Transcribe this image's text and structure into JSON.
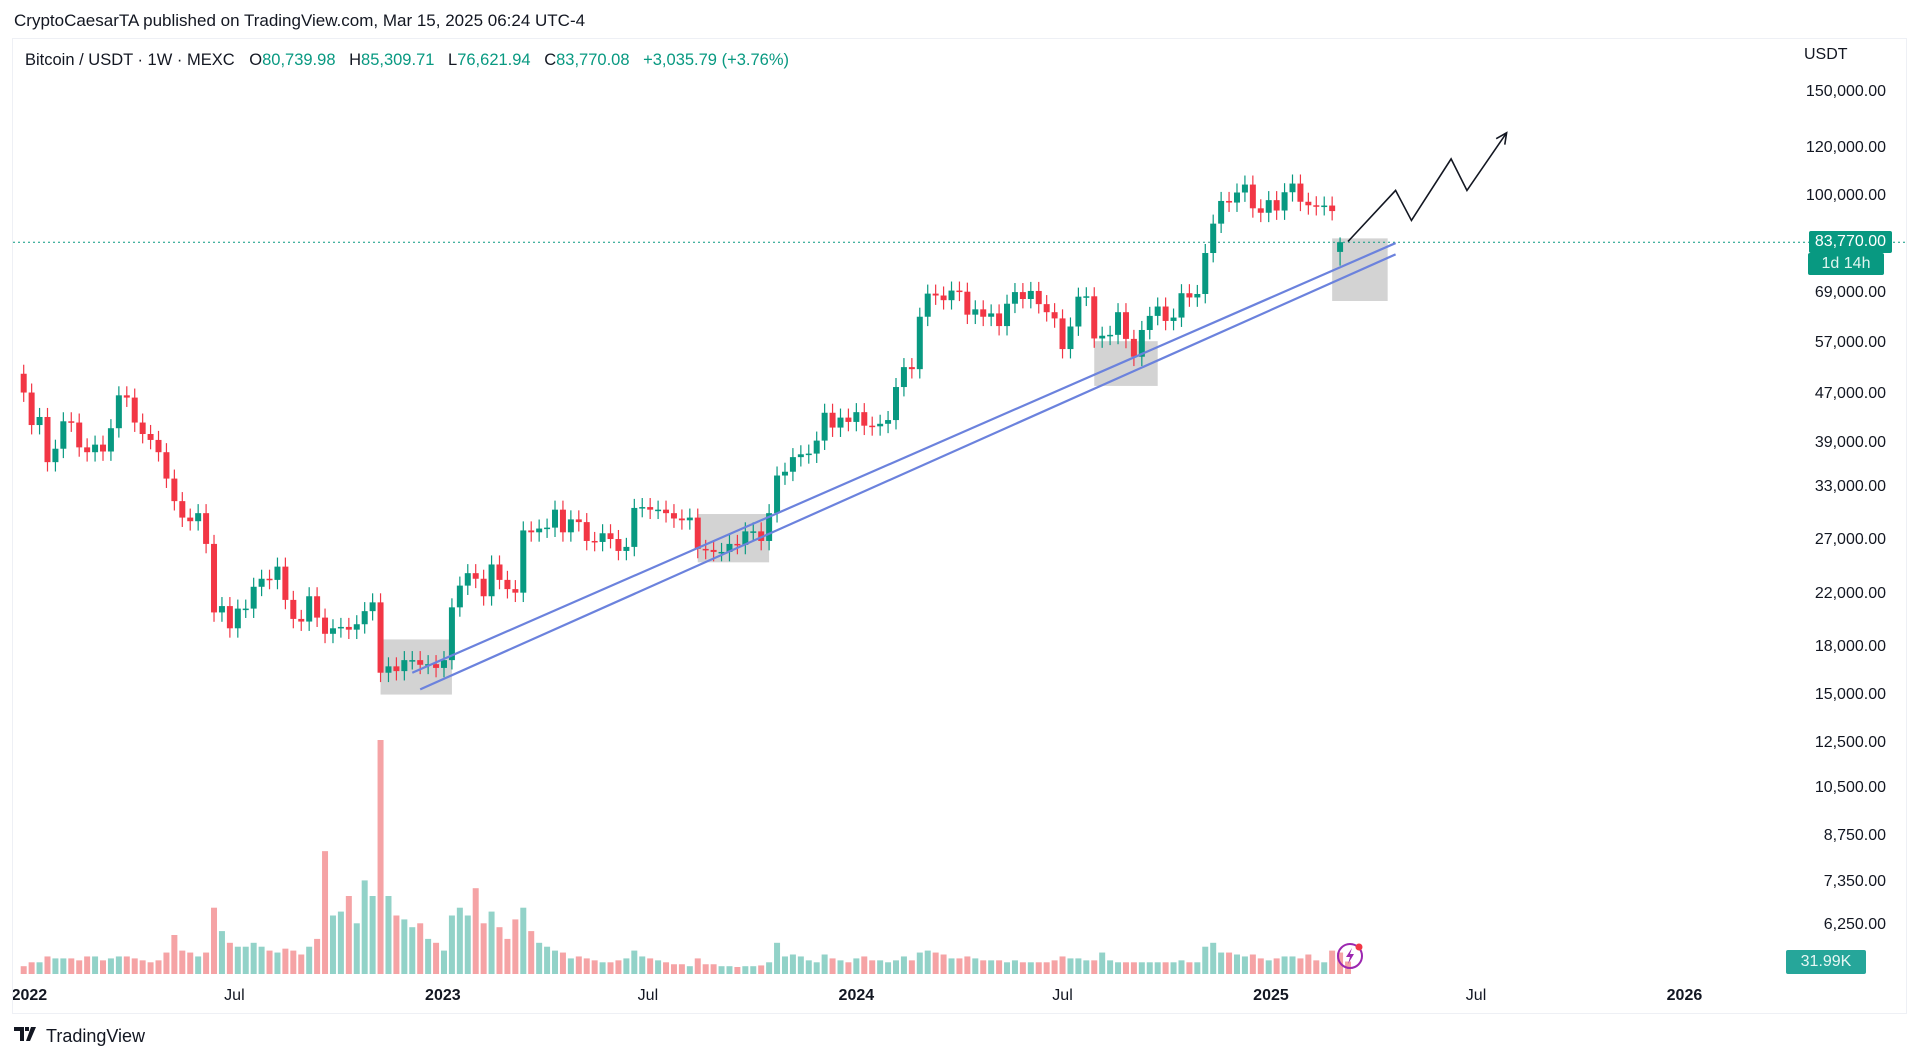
{
  "publication": "CryptoCaesarTA published on TradingView.com, Mar 15, 2025 06:24 UTC-4",
  "legend": {
    "symbol": "Bitcoin / USDT · 1W · MEXC",
    "o_label": "O",
    "o": "80,739.98",
    "h_label": "H",
    "h": "85,309.71",
    "l_label": "L",
    "l": "76,621.94",
    "c_label": "C",
    "c": "83,770.08",
    "change": "+3,035.79 (+3.76%)"
  },
  "price_axis": {
    "currency": "USDT",
    "ticks": [
      "150,000.00",
      "120,000.00",
      "100,000.00",
      "69,000.00",
      "57,000.00",
      "47,000.00",
      "39,000.00",
      "33,000.00",
      "27,000.00",
      "22,000.00",
      "18,000.00",
      "15,000.00",
      "12,500.00",
      "10,500.00",
      "8,750.00",
      "7,350.00",
      "6,250.00"
    ],
    "current_price": "83,770.00",
    "countdown": "1d 14h",
    "volume_label": "31.99K"
  },
  "time_axis": {
    "ticks": [
      {
        "label": "2022",
        "date": "2022-01-01",
        "year": true
      },
      {
        "label": "Jul",
        "date": "2022-07-01",
        "year": false
      },
      {
        "label": "2023",
        "date": "2023-01-01",
        "year": true
      },
      {
        "label": "Jul",
        "date": "2023-07-01",
        "year": false
      },
      {
        "label": "2024",
        "date": "2024-01-01",
        "year": true
      },
      {
        "label": "Jul",
        "date": "2024-07-01",
        "year": false
      },
      {
        "label": "2025",
        "date": "2025-01-01",
        "year": true
      },
      {
        "label": "Jul",
        "date": "2025-07-01",
        "year": false
      },
      {
        "label": "2026",
        "date": "2026-01-01",
        "year": true
      }
    ]
  },
  "footer": {
    "brand": "TradingView"
  },
  "colors": {
    "up": "#089981",
    "down": "#f23645",
    "up_volume": "#92d2c8",
    "down_volume": "#f5a3a5",
    "trendline": "#6b82dd",
    "zone": "#c4c4c4",
    "projection": "#131722",
    "current_line": "#089981",
    "alert": "#9c27b0"
  },
  "icons": {
    "alert": "lightning-bolt-icon",
    "logo": "tradingview-logo-icon"
  },
  "chart_data": {
    "type": "candlestick",
    "symbol": "BTCUSDT",
    "interval": "1W",
    "y_scale": "log",
    "ylim": [
      5600,
      160000
    ],
    "first_week": "2021-12-27",
    "first_open": 50800,
    "closes": [
      47300,
      41800,
      43100,
      36300,
      38200,
      42400,
      42200,
      38400,
      37700,
      38800,
      37800,
      41300,
      46800,
      46400,
      42200,
      40400,
      39500,
      37700,
      34100,
      31300,
      29400,
      29000,
      29900,
      26600,
      20500,
      21000,
      19300,
      20800,
      20800,
      22600,
      23300,
      23200,
      24400,
      21500,
      20000,
      19800,
      21800,
      20100,
      18900,
      19300,
      19400,
      19200,
      19600,
      20600,
      21300,
      16300,
      16700,
      16400,
      17100,
      17100,
      16800,
      16840,
      16600,
      17100,
      20900,
      22700,
      23800,
      23300,
      21800,
      24600,
      23200,
      22400,
      22100,
      28000,
      27800,
      28200,
      28300,
      30300,
      27800,
      29200,
      28900,
      26900,
      26800,
      27700,
      27100,
      25900,
      26300,
      30500,
      30600,
      30300,
      30300,
      29900,
      29300,
      29100,
      29400,
      26100,
      26000,
      25800,
      25800,
      26600,
      26500,
      27900,
      27900,
      26900,
      29900,
      34500,
      35000,
      37000,
      37400,
      37500,
      39400,
      43800,
      41400,
      43000,
      42300,
      43900,
      41700,
      41600,
      42000,
      42600,
      48300,
      52100,
      51700,
      63100,
      68900,
      68400,
      67200,
      69700,
      69400,
      63600,
      64900,
      63100,
      63900,
      60900,
      66300,
      69300,
      67500,
      69600,
      66200,
      64200,
      62700,
      55800,
      60800,
      68100,
      68200,
      58100,
      58700,
      58900,
      64200,
      58000,
      54200,
      60000,
      63300,
      65600,
      62100,
      62900,
      69000,
      67900,
      68800,
      80400,
      89900,
      98000,
      97400,
      101200,
      104300,
      95300,
      93700,
      98300,
      94500,
      101300,
      104700,
      97700,
      96400,
      96100,
      96300,
      94300,
      80740
    ],
    "last_candle": {
      "open": 80739.98,
      "high": 85309.71,
      "low": 76621.94,
      "close": 83770.08
    },
    "volume_k": [
      20,
      30,
      30,
      45,
      40,
      40,
      40,
      35,
      45,
      45,
      35,
      40,
      45,
      45,
      40,
      35,
      30,
      35,
      55,
      100,
      60,
      55,
      45,
      55,
      170,
      110,
      80,
      70,
      70,
      80,
      70,
      60,
      55,
      65,
      60,
      50,
      70,
      90,
      315,
      150,
      160,
      200,
      130,
      240,
      200,
      600,
      200,
      150,
      140,
      120,
      130,
      90,
      80,
      60,
      150,
      170,
      150,
      220,
      130,
      160,
      120,
      90,
      140,
      170,
      110,
      80,
      70,
      60,
      55,
      40,
      45,
      40,
      35,
      30,
      30,
      35,
      40,
      60,
      45,
      40,
      35,
      30,
      25,
      25,
      20,
      40,
      25,
      25,
      20,
      20,
      18,
      20,
      20,
      22,
      30,
      80,
      45,
      50,
      45,
      35,
      30,
      50,
      40,
      35,
      30,
      40,
      45,
      35,
      35,
      30,
      35,
      45,
      35,
      55,
      60,
      55,
      50,
      40,
      40,
      45,
      40,
      35,
      35,
      35,
      30,
      35,
      30,
      30,
      30,
      30,
      35,
      45,
      40,
      40,
      35,
      35,
      55,
      35,
      30,
      30,
      30,
      30,
      30,
      30,
      30,
      30,
      35,
      30,
      30,
      70,
      80,
      55,
      55,
      50,
      45,
      50,
      40,
      35,
      40,
      45,
      45,
      40,
      50,
      35,
      30,
      60,
      55,
      31.99
    ],
    "current_price": 83770.08,
    "annotations": {
      "support_zones": [
        {
          "from": "2022-11-07",
          "to": "2023-01-09",
          "low": 15000,
          "high": 18500
        },
        {
          "from": "2023-08-14",
          "to": "2023-10-16",
          "low": 24800,
          "high": 29800
        },
        {
          "from": "2024-07-29",
          "to": "2024-09-23",
          "low": 48500,
          "high": 57500
        },
        {
          "from": "2025-02-24",
          "to": "2025-04-14",
          "low": 67000,
          "high": 85000
        }
      ],
      "trendlines": [
        {
          "from": {
            "date": "2022-12-05",
            "price": 16300
          },
          "to": {
            "date": "2025-04-21",
            "price": 83500
          }
        },
        {
          "from": {
            "date": "2022-12-12",
            "price": 15300
          },
          "to": {
            "date": "2025-04-21",
            "price": 80000
          }
        }
      ],
      "projection_path": [
        {
          "date": "2025-03-10",
          "price": 84000
        },
        {
          "date": "2025-04-21",
          "price": 102000
        },
        {
          "date": "2025-05-05",
          "price": 91000
        },
        {
          "date": "2025-06-09",
          "price": 115000
        },
        {
          "date": "2025-06-23",
          "price": 102000
        },
        {
          "date": "2025-07-28",
          "price": 127000
        }
      ]
    }
  }
}
